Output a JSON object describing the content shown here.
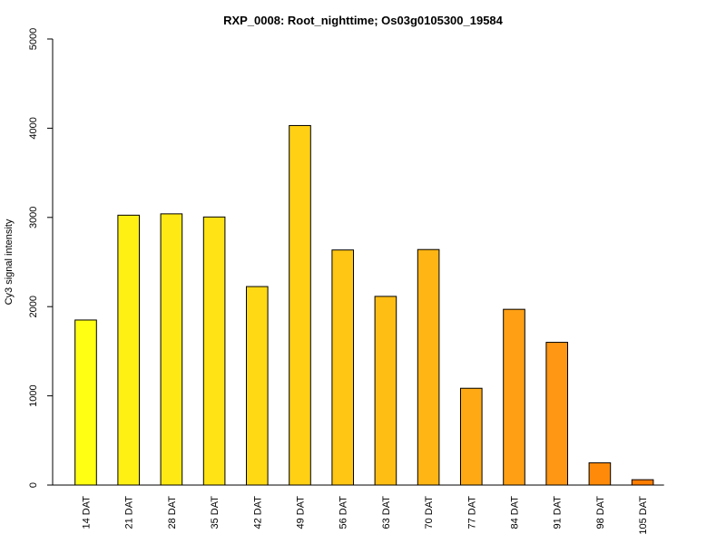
{
  "chart_data": {
    "type": "bar",
    "title": "RXP_0008: Root_nighttime; Os03g0105300_19584",
    "xlabel": "",
    "ylabel": "Cy3 signal intensity",
    "ylim": [
      0,
      5000
    ],
    "yticks": [
      0,
      1000,
      2000,
      3000,
      4000,
      5000
    ],
    "grid": false,
    "categories": [
      "14 DAT",
      "21 DAT",
      "28 DAT",
      "35 DAT",
      "42 DAT",
      "49 DAT",
      "56 DAT",
      "63 DAT",
      "70 DAT",
      "77 DAT",
      "84 DAT",
      "91 DAT",
      "98 DAT",
      "105 DAT"
    ],
    "values": [
      1850,
      3025,
      3040,
      3005,
      2225,
      4030,
      2635,
      2115,
      2640,
      1085,
      1970,
      1600,
      250,
      60
    ],
    "colors": [
      "#FFFF14",
      "#FFF014",
      "#FFE914",
      "#FFE314",
      "#FFD914",
      "#FFD014",
      "#FFC614",
      "#FFBE14",
      "#FFB514",
      "#FFAA14",
      "#FFA014",
      "#FF9614",
      "#FF8A0A",
      "#FF7D00"
    ]
  }
}
